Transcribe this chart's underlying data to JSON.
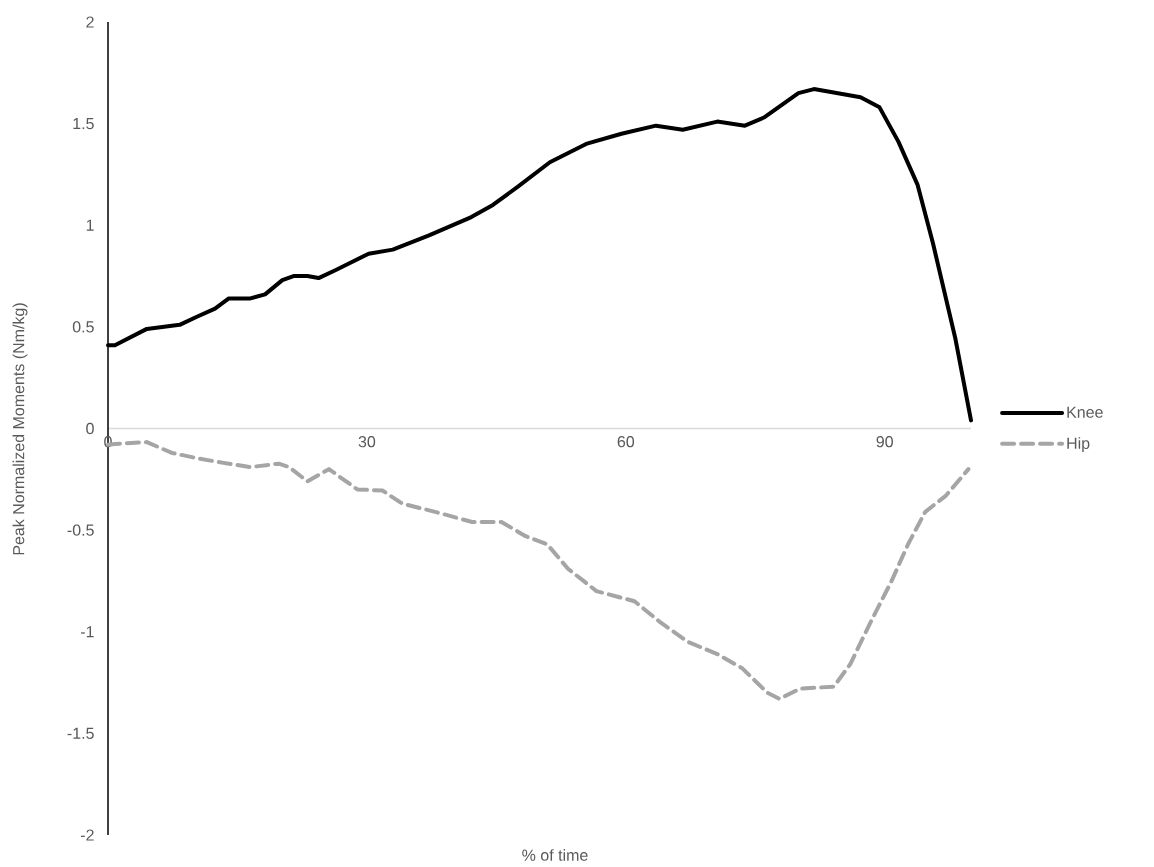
{
  "chart_data": {
    "type": "line",
    "xlabel": "% of time",
    "ylabel": "Peak Normalized Moments (Nm/kg)",
    "xlim": [
      0,
      100
    ],
    "ylim": [
      -2,
      2
    ],
    "xticks": [
      0,
      30,
      60,
      90
    ],
    "yticks": [
      -2,
      -1.5,
      -1,
      -0.5,
      0,
      0.5,
      1,
      1.5,
      2
    ],
    "legend": "right",
    "series": [
      {
        "name": "Knee",
        "color": "#000000",
        "line_style": "solid",
        "x": [
          0,
          0.8,
          4.5,
          8.3,
          10.3,
          12.4,
          14,
          16.5,
          18.2,
          20.2,
          21.5,
          23.1,
          24.4,
          26.4,
          30.2,
          33,
          37.2,
          42.1,
          44.6,
          47.5,
          51.2,
          55.4,
          59.5,
          63.5,
          66.6,
          70.6,
          73.8,
          76,
          80,
          81.8,
          87.2,
          89.4,
          91.6,
          93.8,
          95.6,
          98.2,
          100
        ],
        "values": [
          0.41,
          0.41,
          0.49,
          0.51,
          0.55,
          0.59,
          0.64,
          0.64,
          0.66,
          0.73,
          0.75,
          0.75,
          0.74,
          0.78,
          0.86,
          0.88,
          0.95,
          1.04,
          1.1,
          1.19,
          1.31,
          1.4,
          1.45,
          1.49,
          1.47,
          1.51,
          1.49,
          1.53,
          1.65,
          1.67,
          1.63,
          1.58,
          1.41,
          1.2,
          0.91,
          0.44,
          0.04
        ]
      },
      {
        "name": "Hip",
        "color": "#a5a5a5",
        "line_style": "dashed",
        "x": [
          0,
          0.8,
          4.5,
          7.4,
          10.3,
          13.2,
          16.5,
          19.8,
          21,
          23.1,
          25.6,
          28.9,
          31.8,
          34.1,
          37.9,
          42.2,
          45.6,
          48.4,
          50.9,
          53.3,
          56.6,
          61,
          63.9,
          67.2,
          70.6,
          73.5,
          76.4,
          77.8,
          80.2,
          84.1,
          86,
          88.4,
          90.8,
          92.7,
          94.7,
          97.1,
          99.7
        ],
        "values": [
          -0.08,
          -0.076,
          -0.067,
          -0.12,
          -0.146,
          -0.168,
          -0.19,
          -0.173,
          -0.19,
          -0.26,
          -0.2,
          -0.3,
          -0.305,
          -0.37,
          -0.41,
          -0.46,
          -0.46,
          -0.53,
          -0.57,
          -0.69,
          -0.8,
          -0.85,
          -0.95,
          -1.05,
          -1.11,
          -1.18,
          -1.3,
          -1.33,
          -1.28,
          -1.27,
          -1.16,
          -0.95,
          -0.75,
          -0.57,
          -0.41,
          -0.33,
          -0.2
        ]
      }
    ]
  }
}
